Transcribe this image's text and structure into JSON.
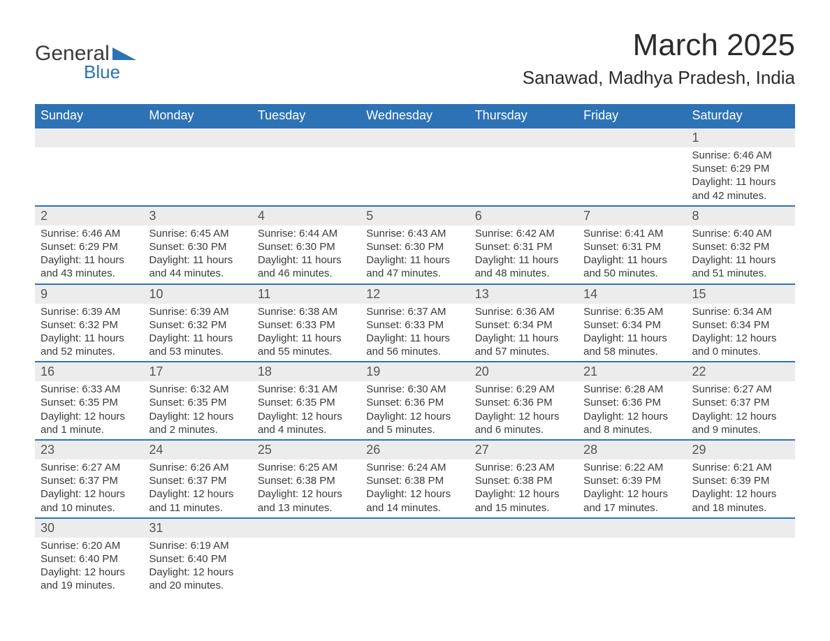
{
  "logo": {
    "word1": "General",
    "word2": "Blue",
    "word1_color": "#3a3a3a",
    "word2_color": "#2d72b5"
  },
  "title": "March 2025",
  "location": "Sanawad, Madhya Pradesh, India",
  "styling": {
    "header_bg": "#2d72b5",
    "header_text": "#ffffff",
    "row_separator": "#2d72b5",
    "daynum_bg": "#ececec",
    "body_text": "#3a3a3a",
    "page_bg": "#ffffff",
    "title_fontsize": 44,
    "location_fontsize": 26,
    "header_fontsize": 18,
    "daynum_fontsize": 18,
    "body_fontsize": 15
  },
  "weekdays": [
    "Sunday",
    "Monday",
    "Tuesday",
    "Wednesday",
    "Thursday",
    "Friday",
    "Saturday"
  ],
  "labels": {
    "sunrise": "Sunrise:",
    "sunset": "Sunset:",
    "daylight": "Daylight:"
  },
  "weeks": [
    [
      null,
      null,
      null,
      null,
      null,
      null,
      {
        "n": "1",
        "sunrise": "6:46 AM",
        "sunset": "6:29 PM",
        "daylight": "11 hours and 42 minutes."
      }
    ],
    [
      {
        "n": "2",
        "sunrise": "6:46 AM",
        "sunset": "6:29 PM",
        "daylight": "11 hours and 43 minutes."
      },
      {
        "n": "3",
        "sunrise": "6:45 AM",
        "sunset": "6:30 PM",
        "daylight": "11 hours and 44 minutes."
      },
      {
        "n": "4",
        "sunrise": "6:44 AM",
        "sunset": "6:30 PM",
        "daylight": "11 hours and 46 minutes."
      },
      {
        "n": "5",
        "sunrise": "6:43 AM",
        "sunset": "6:30 PM",
        "daylight": "11 hours and 47 minutes."
      },
      {
        "n": "6",
        "sunrise": "6:42 AM",
        "sunset": "6:31 PM",
        "daylight": "11 hours and 48 minutes."
      },
      {
        "n": "7",
        "sunrise": "6:41 AM",
        "sunset": "6:31 PM",
        "daylight": "11 hours and 50 minutes."
      },
      {
        "n": "8",
        "sunrise": "6:40 AM",
        "sunset": "6:32 PM",
        "daylight": "11 hours and 51 minutes."
      }
    ],
    [
      {
        "n": "9",
        "sunrise": "6:39 AM",
        "sunset": "6:32 PM",
        "daylight": "11 hours and 52 minutes."
      },
      {
        "n": "10",
        "sunrise": "6:39 AM",
        "sunset": "6:32 PM",
        "daylight": "11 hours and 53 minutes."
      },
      {
        "n": "11",
        "sunrise": "6:38 AM",
        "sunset": "6:33 PM",
        "daylight": "11 hours and 55 minutes."
      },
      {
        "n": "12",
        "sunrise": "6:37 AM",
        "sunset": "6:33 PM",
        "daylight": "11 hours and 56 minutes."
      },
      {
        "n": "13",
        "sunrise": "6:36 AM",
        "sunset": "6:34 PM",
        "daylight": "11 hours and 57 minutes."
      },
      {
        "n": "14",
        "sunrise": "6:35 AM",
        "sunset": "6:34 PM",
        "daylight": "11 hours and 58 minutes."
      },
      {
        "n": "15",
        "sunrise": "6:34 AM",
        "sunset": "6:34 PM",
        "daylight": "12 hours and 0 minutes."
      }
    ],
    [
      {
        "n": "16",
        "sunrise": "6:33 AM",
        "sunset": "6:35 PM",
        "daylight": "12 hours and 1 minute."
      },
      {
        "n": "17",
        "sunrise": "6:32 AM",
        "sunset": "6:35 PM",
        "daylight": "12 hours and 2 minutes."
      },
      {
        "n": "18",
        "sunrise": "6:31 AM",
        "sunset": "6:35 PM",
        "daylight": "12 hours and 4 minutes."
      },
      {
        "n": "19",
        "sunrise": "6:30 AM",
        "sunset": "6:36 PM",
        "daylight": "12 hours and 5 minutes."
      },
      {
        "n": "20",
        "sunrise": "6:29 AM",
        "sunset": "6:36 PM",
        "daylight": "12 hours and 6 minutes."
      },
      {
        "n": "21",
        "sunrise": "6:28 AM",
        "sunset": "6:36 PM",
        "daylight": "12 hours and 8 minutes."
      },
      {
        "n": "22",
        "sunrise": "6:27 AM",
        "sunset": "6:37 PM",
        "daylight": "12 hours and 9 minutes."
      }
    ],
    [
      {
        "n": "23",
        "sunrise": "6:27 AM",
        "sunset": "6:37 PM",
        "daylight": "12 hours and 10 minutes."
      },
      {
        "n": "24",
        "sunrise": "6:26 AM",
        "sunset": "6:37 PM",
        "daylight": "12 hours and 11 minutes."
      },
      {
        "n": "25",
        "sunrise": "6:25 AM",
        "sunset": "6:38 PM",
        "daylight": "12 hours and 13 minutes."
      },
      {
        "n": "26",
        "sunrise": "6:24 AM",
        "sunset": "6:38 PM",
        "daylight": "12 hours and 14 minutes."
      },
      {
        "n": "27",
        "sunrise": "6:23 AM",
        "sunset": "6:38 PM",
        "daylight": "12 hours and 15 minutes."
      },
      {
        "n": "28",
        "sunrise": "6:22 AM",
        "sunset": "6:39 PM",
        "daylight": "12 hours and 17 minutes."
      },
      {
        "n": "29",
        "sunrise": "6:21 AM",
        "sunset": "6:39 PM",
        "daylight": "12 hours and 18 minutes."
      }
    ],
    [
      {
        "n": "30",
        "sunrise": "6:20 AM",
        "sunset": "6:40 PM",
        "daylight": "12 hours and 19 minutes."
      },
      {
        "n": "31",
        "sunrise": "6:19 AM",
        "sunset": "6:40 PM",
        "daylight": "12 hours and 20 minutes."
      },
      null,
      null,
      null,
      null,
      null
    ]
  ]
}
